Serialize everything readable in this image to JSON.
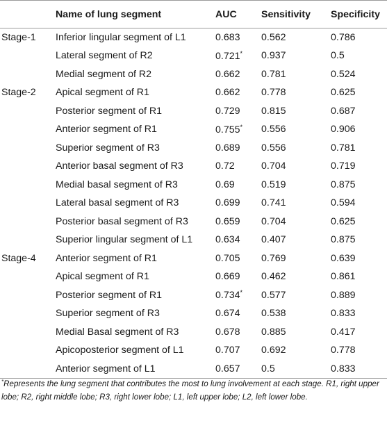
{
  "headers": {
    "stage": "",
    "segment": "Name of lung segment",
    "auc": "AUC",
    "sensitivity": "Sensitivity",
    "specificity": "Specificity"
  },
  "rows": [
    {
      "stage": "Stage-1",
      "segment": "Inferior lingular segment of L1",
      "auc": "0.683",
      "auc_mark": "",
      "sensitivity": "0.562",
      "specificity": "0.786"
    },
    {
      "stage": "",
      "segment": "Lateral segment of R2",
      "auc": "0.721",
      "auc_mark": "*",
      "sensitivity": "0.937",
      "specificity": "0.5"
    },
    {
      "stage": "",
      "segment": "Medial segment of R2",
      "auc": "0.662",
      "auc_mark": "",
      "sensitivity": "0.781",
      "specificity": "0.524"
    },
    {
      "stage": "Stage-2",
      "segment": "Apical segment of R1",
      "auc": "0.662",
      "auc_mark": "",
      "sensitivity": "0.778",
      "specificity": "0.625"
    },
    {
      "stage": "",
      "segment": "Posterior segment of R1",
      "auc": "0.729",
      "auc_mark": "",
      "sensitivity": "0.815",
      "specificity": "0.687"
    },
    {
      "stage": "",
      "segment": "Anterior segment of R1",
      "auc": "0.755",
      "auc_mark": "*",
      "sensitivity": "0.556",
      "specificity": "0.906"
    },
    {
      "stage": "",
      "segment": "Superior segment of R3",
      "auc": "0.689",
      "auc_mark": "",
      "sensitivity": "0.556",
      "specificity": "0.781"
    },
    {
      "stage": "",
      "segment": "Anterior basal segment of R3",
      "auc": "0.72",
      "auc_mark": "",
      "sensitivity": "0.704",
      "specificity": "0.719"
    },
    {
      "stage": "",
      "segment": "Medial basal segment of R3",
      "auc": "0.69",
      "auc_mark": "",
      "sensitivity": "0.519",
      "specificity": "0.875"
    },
    {
      "stage": "",
      "segment": "Lateral basal segment of R3",
      "auc": "0.699",
      "auc_mark": "",
      "sensitivity": "0.741",
      "specificity": "0.594"
    },
    {
      "stage": "",
      "segment": "Posterior basal segment of R3",
      "auc": "0.659",
      "auc_mark": "",
      "sensitivity": "0.704",
      "specificity": "0.625"
    },
    {
      "stage": "",
      "segment": "Superior lingular segment of L1",
      "auc": "0.634",
      "auc_mark": "",
      "sensitivity": "0.407",
      "specificity": "0.875"
    },
    {
      "stage": "Stage-4",
      "segment": "Anterior segment of R1",
      "auc": "0.705",
      "auc_mark": "",
      "sensitivity": "0.769",
      "specificity": "0.639"
    },
    {
      "stage": "",
      "segment": "Apical segment of R1",
      "auc": "0.669",
      "auc_mark": "",
      "sensitivity": "0.462",
      "specificity": "0.861"
    },
    {
      "stage": "",
      "segment": "Posterior segment of R1",
      "auc": "0.734",
      "auc_mark": "*",
      "sensitivity": "0.577",
      "specificity": "0.889"
    },
    {
      "stage": "",
      "segment": "Superior segment of R3",
      "auc": "0.674",
      "auc_mark": "",
      "sensitivity": "0.538",
      "specificity": "0.833"
    },
    {
      "stage": "",
      "segment": "Medial Basal segment of R3",
      "auc": "0.678",
      "auc_mark": "",
      "sensitivity": "0.885",
      "specificity": "0.417"
    },
    {
      "stage": "",
      "segment": "Apicoposterior segment of L1",
      "auc": "0.707",
      "auc_mark": "",
      "sensitivity": "0.692",
      "specificity": "0.778"
    },
    {
      "stage": "",
      "segment": "Anterior segment of L1",
      "auc": "0.657",
      "auc_mark": "",
      "sensitivity": "0.5",
      "specificity": "0.833"
    }
  ],
  "footnote": {
    "mark": "*",
    "text": "Represents the lung segment that contributes the most to lung involvement at each stage. R1, right upper lobe; R2, right middle lobe; R3, right lower lobe; L1, left upper lobe; L2, left lower lobe."
  }
}
